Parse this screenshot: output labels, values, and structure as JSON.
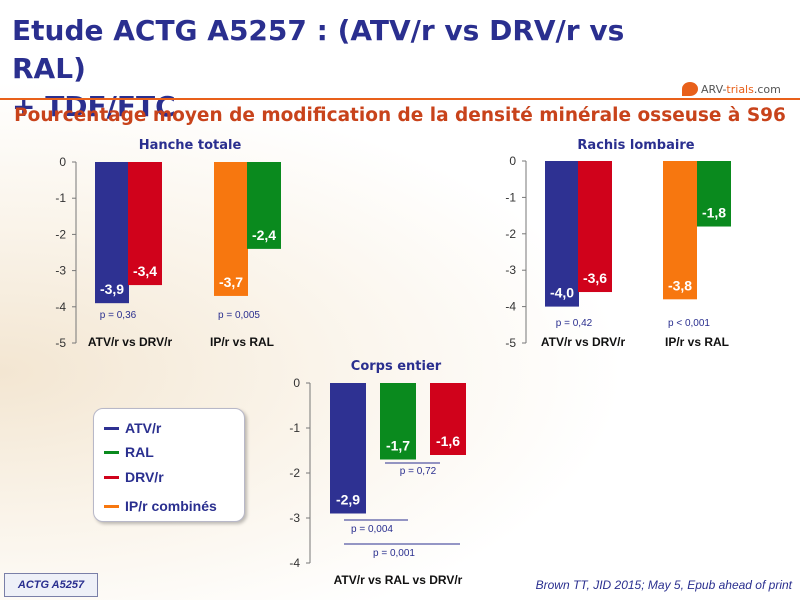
{
  "slide": {
    "title_line1": "Etude ACTG A5257 : (ATV/r vs DRV/r vs RAL)",
    "title_line2": "+ TDF/FTC",
    "subtitle": "Pourcentage moyen de modification de la densité minérale osseuse à S96",
    "logo_text_main": "ARV-",
    "logo_text_accent": "trials",
    "logo_text_tail": ".com",
    "footer_badge": "ACTG A5257",
    "citation": "Brown TT, JID 2015; May 5, Epub ahead of print"
  },
  "colors": {
    "ATV/r": "#2e3192",
    "RAL": "#0a8a1e",
    "DRV/r": "#d0021b",
    "IP/r combinés": "#f7770f",
    "title": "#2a2f8f",
    "accent": "#e8601a"
  },
  "legend": [
    {
      "label": "ATV/r",
      "color": "#2e3192"
    },
    {
      "label": "RAL",
      "color": "#0a8a1e"
    },
    {
      "label": "DRV/r",
      "color": "#d0021b"
    },
    {
      "label": "IP/r combinés",
      "color": "#f7770f"
    }
  ],
  "chart_data": [
    {
      "type": "bar",
      "title": "Hanche totale",
      "ylim": [
        -5,
        0
      ],
      "yticks": [
        "0",
        "-1",
        "-2",
        "-3",
        "-4",
        "-5"
      ],
      "groups": [
        {
          "label": "ATV/r vs DRV/r",
          "pvalue": "p = 0,36",
          "bars": [
            {
              "series": "ATV/r",
              "value": -3.9,
              "label": "-3,9"
            },
            {
              "series": "DRV/r",
              "value": -3.4,
              "label": "-3,4"
            }
          ]
        },
        {
          "label": "IP/r vs RAL",
          "pvalue": "p = 0,005",
          "bars": [
            {
              "series": "IP/r combinés",
              "value": -3.7,
              "label": "-3,7"
            },
            {
              "series": "RAL",
              "value": -2.4,
              "label": "-2,4"
            }
          ]
        }
      ]
    },
    {
      "type": "bar",
      "title": "Rachis lombaire",
      "ylim": [
        -5,
        0
      ],
      "yticks": [
        "0",
        "-1",
        "-2",
        "-3",
        "-4",
        "-5"
      ],
      "groups": [
        {
          "label": "ATV/r vs DRV/r",
          "pvalue": "p = 0,42",
          "bars": [
            {
              "series": "ATV/r",
              "value": -4.0,
              "label": "-4,0"
            },
            {
              "series": "DRV/r",
              "value": -3.6,
              "label": "-3,6"
            }
          ]
        },
        {
          "label": "IP/r vs RAL",
          "pvalue": "p < 0,001",
          "bars": [
            {
              "series": "IP/r combinés",
              "value": -3.8,
              "label": "-3,8"
            },
            {
              "series": "RAL",
              "value": -1.8,
              "label": "-1,8"
            }
          ]
        }
      ]
    },
    {
      "type": "bar",
      "title": "Corps entier",
      "ylim": [
        -4,
        0
      ],
      "yticks": [
        "0",
        "-1",
        "-2",
        "-3",
        "-4"
      ],
      "xlabel": "ATV/r vs RAL vs DRV/r",
      "bars": [
        {
          "series": "ATV/r",
          "value": -2.9,
          "label": "-2,9"
        },
        {
          "series": "RAL",
          "value": -1.7,
          "label": "-1,7"
        },
        {
          "series": "DRV/r",
          "value": -1.6,
          "label": "-1,6"
        }
      ],
      "comparisons": [
        {
          "text": "p = 0,72",
          "between": [
            "RAL",
            "DRV/r"
          ]
        },
        {
          "text": "p = 0,004",
          "between": [
            "ATV/r",
            "RAL"
          ]
        },
        {
          "text": "p = 0,001",
          "between": [
            "ATV/r",
            "DRV/r"
          ]
        }
      ]
    }
  ]
}
